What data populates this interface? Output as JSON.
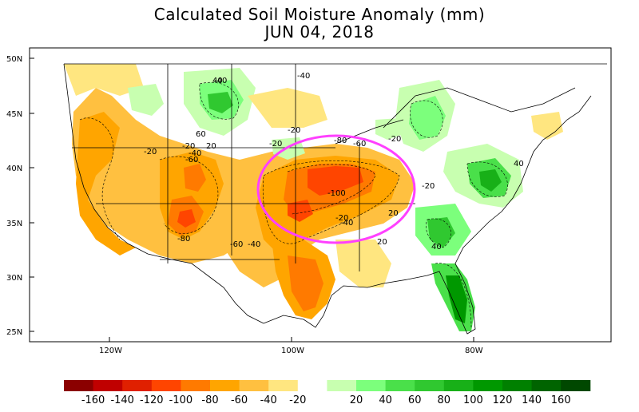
{
  "title": "Calculated Soil Moisture Anomaly (mm)",
  "date": "JUN 04, 2018",
  "lat_ticks": [
    "50N",
    "45N",
    "40N",
    "35N",
    "30N",
    "25N"
  ],
  "lon_ticks": [
    "120W",
    "100W",
    "80W"
  ],
  "legend": {
    "colors": [
      "#8b0000",
      "#c00000",
      "#e02000",
      "#ff4500",
      "#ff7a00",
      "#ffa500",
      "#ffc040",
      "#ffe680",
      "#ffffff",
      "#c8ffb0",
      "#7cff7c",
      "#4ae04a",
      "#30c830",
      "#18b018",
      "#009800",
      "#008000",
      "#006400",
      "#004800"
    ],
    "labels": [
      "-160",
      "-140",
      "-120",
      "-100",
      "-80",
      "-60",
      "-40",
      "-20",
      "20",
      "40",
      "60",
      "80",
      "100",
      "120",
      "140",
      "160"
    ]
  },
  "contour_labels": [
    "-40",
    "-40",
    "-20",
    "-20",
    "-20",
    "-20",
    "-40",
    "-60",
    "-60",
    "-80",
    "-60",
    "-40",
    "-100",
    "-40",
    "-20",
    "-20",
    "-80",
    "20",
    "20",
    "40",
    "40",
    "40",
    "60",
    "20",
    "-20"
  ],
  "annotation": "highlight-ellipse"
}
